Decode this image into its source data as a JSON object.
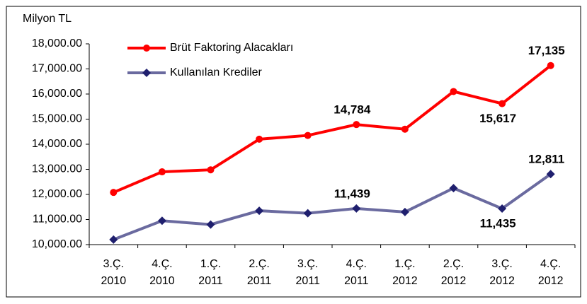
{
  "chart_data": {
    "type": "line",
    "y_axis_label": "Milyon TL",
    "categories": [
      "3.Ç.\n2010",
      "4.Ç.\n2010",
      "1.Ç.\n2011",
      "2.Ç.\n2011",
      "3.Ç.\n2011",
      "4.Ç.\n2011",
      "1.Ç.\n2012",
      "2.Ç.\n2012",
      "3.Ç.\n2012",
      "4.Ç.\n2012"
    ],
    "series": [
      {
        "name": "Brüt Faktoring Alacakları",
        "color": "#ff0000",
        "marker": "circle",
        "values": [
          12080,
          12900,
          12980,
          14200,
          14350,
          14784,
          14600,
          16100,
          15617,
          17135
        ],
        "value_labels": [
          null,
          null,
          null,
          null,
          null,
          "14,784",
          null,
          null,
          "15,617",
          "17,135"
        ]
      },
      {
        "name": "Kullanılan Krediler",
        "color": "#6a6a9f",
        "marker": "diamond",
        "values": [
          10200,
          10950,
          10800,
          11350,
          11250,
          11439,
          11300,
          12250,
          11435,
          12811
        ],
        "value_labels": [
          null,
          null,
          null,
          null,
          null,
          "11,439",
          null,
          null,
          "11,435",
          "12,811"
        ]
      }
    ],
    "ylim": [
      10000,
      18000
    ],
    "yticks": [
      {
        "value": 10000,
        "label": "10,000.00"
      },
      {
        "value": 11000,
        "label": "11,000.00"
      },
      {
        "value": 12000,
        "label": "12,000.00"
      },
      {
        "value": 13000,
        "label": "13,000.00"
      },
      {
        "value": 14000,
        "label": "14,000.00"
      },
      {
        "value": 15000,
        "label": "15,000.00"
      },
      {
        "value": 16000,
        "label": "16,000.00"
      },
      {
        "value": 17000,
        "label": "17,000.00"
      },
      {
        "value": 18000,
        "label": "18,000.00"
      }
    ],
    "grid": false,
    "legend": "upper left"
  }
}
